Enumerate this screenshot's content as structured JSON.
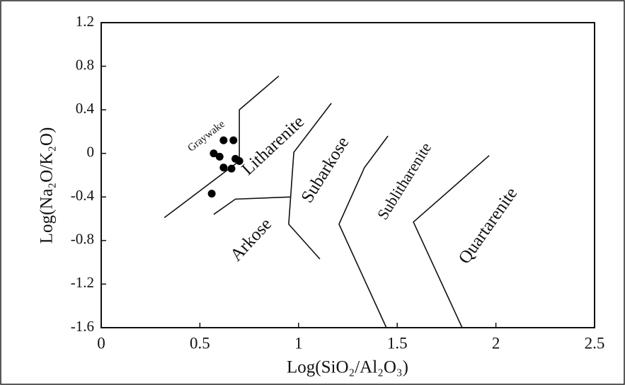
{
  "chart_data": {
    "type": "scatter",
    "x_label": "Log(SiO₂/Al₂O₃)",
    "y_label": "Log(Na₂O/K₂O)",
    "xlim": [
      0,
      2.5
    ],
    "ylim": [
      -1.6,
      1.2
    ],
    "xticks": [
      0,
      0.5,
      1,
      1.5,
      2,
      2.5
    ],
    "yticks": [
      1.2,
      0.8,
      0.4,
      0,
      -0.4,
      -0.8,
      -1.2,
      -1.6
    ],
    "color": "#000000",
    "x": [
      0.57,
      0.6,
      0.62,
      0.67,
      0.62,
      0.66,
      0.68,
      0.7,
      0.56
    ],
    "y": [
      0.0,
      -0.03,
      0.12,
      0.12,
      -0.13,
      -0.14,
      -0.05,
      -0.07,
      -0.37
    ],
    "boundaries": [
      {
        "x": [
          0.32,
          0.7,
          0.7,
          0.9
        ],
        "y": [
          -0.59,
          -0.07,
          0.4,
          0.71
        ]
      },
      {
        "x": [
          0.57,
          0.68,
          0.96
        ],
        "y": [
          -0.56,
          -0.42,
          -0.4
        ]
      },
      {
        "x": [
          1.166,
          0.976,
          0.95,
          1.108
        ],
        "y": [
          0.46,
          0.01,
          -0.65,
          -0.97
        ]
      },
      {
        "x": [
          1.453,
          1.334,
          1.205,
          1.445
        ],
        "y": [
          0.16,
          -0.13,
          -0.65,
          -1.6
        ]
      },
      {
        "x": [
          1.966,
          1.582,
          1.829
        ],
        "y": [
          -0.02,
          -0.63,
          -1.6
        ]
      }
    ],
    "annotations": [
      "Graywake",
      "Litharenite",
      "Arkose",
      "Subarkose",
      "Sublitharenite",
      "Quartarenite"
    ]
  }
}
